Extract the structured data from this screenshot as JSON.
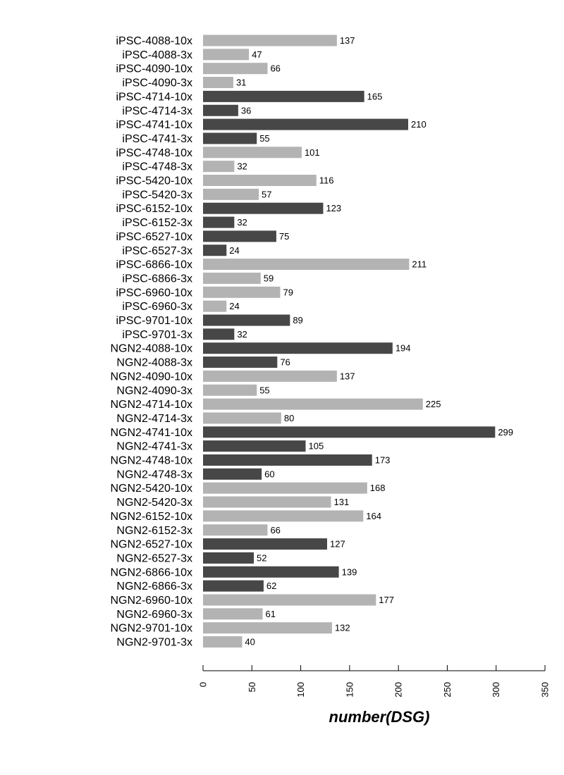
{
  "chart_data": {
    "type": "bar",
    "orientation": "horizontal",
    "title": "",
    "xlabel": "number(DSG)",
    "ylabel": "",
    "xlim": [
      0,
      350
    ],
    "xticks": [
      0,
      50,
      100,
      150,
      200,
      250,
      300,
      350
    ],
    "grid": false,
    "legend": "none",
    "colors": {
      "light": "#b3b3b3",
      "dark": "#474747"
    },
    "categories": [
      "iPSC-4088-10x",
      "iPSC-4088-3x",
      "iPSC-4090-10x",
      "iPSC-4090-3x",
      "iPSC-4714-10x",
      "iPSC-4714-3x",
      "iPSC-4741-10x",
      "iPSC-4741-3x",
      "iPSC-4748-10x",
      "iPSC-4748-3x",
      "iPSC-5420-10x",
      "iPSC-5420-3x",
      "iPSC-6152-10x",
      "iPSC-6152-3x",
      "iPSC-6527-10x",
      "iPSC-6527-3x",
      "iPSC-6866-10x",
      "iPSC-6866-3x",
      "iPSC-6960-10x",
      "iPSC-6960-3x",
      "iPSC-9701-10x",
      "iPSC-9701-3x",
      "NGN2-4088-10x",
      "NGN2-4088-3x",
      "NGN2-4090-10x",
      "NGN2-4090-3x",
      "NGN2-4714-10x",
      "NGN2-4714-3x",
      "NGN2-4741-10x",
      "NGN2-4741-3x",
      "NGN2-4748-10x",
      "NGN2-4748-3x",
      "NGN2-5420-10x",
      "NGN2-5420-3x",
      "NGN2-6152-10x",
      "NGN2-6152-3x",
      "NGN2-6527-10x",
      "NGN2-6527-3x",
      "NGN2-6866-10x",
      "NGN2-6866-3x",
      "NGN2-6960-10x",
      "NGN2-6960-3x",
      "NGN2-9701-10x",
      "NGN2-9701-3x"
    ],
    "values": [
      137,
      47,
      66,
      31,
      165,
      36,
      210,
      55,
      101,
      32,
      116,
      57,
      123,
      32,
      75,
      24,
      211,
      59,
      79,
      24,
      89,
      32,
      194,
      76,
      137,
      55,
      225,
      80,
      299,
      105,
      173,
      60,
      168,
      131,
      164,
      66,
      127,
      52,
      139,
      62,
      177,
      61,
      132,
      40
    ],
    "bar_shade": [
      "light",
      "light",
      "light",
      "light",
      "dark",
      "dark",
      "dark",
      "dark",
      "light",
      "light",
      "light",
      "light",
      "dark",
      "dark",
      "dark",
      "dark",
      "light",
      "light",
      "light",
      "light",
      "dark",
      "dark",
      "dark",
      "dark",
      "light",
      "light",
      "light",
      "light",
      "dark",
      "dark",
      "dark",
      "dark",
      "light",
      "light",
      "light",
      "light",
      "dark",
      "dark",
      "dark",
      "dark",
      "light",
      "light",
      "light",
      "light"
    ]
  }
}
